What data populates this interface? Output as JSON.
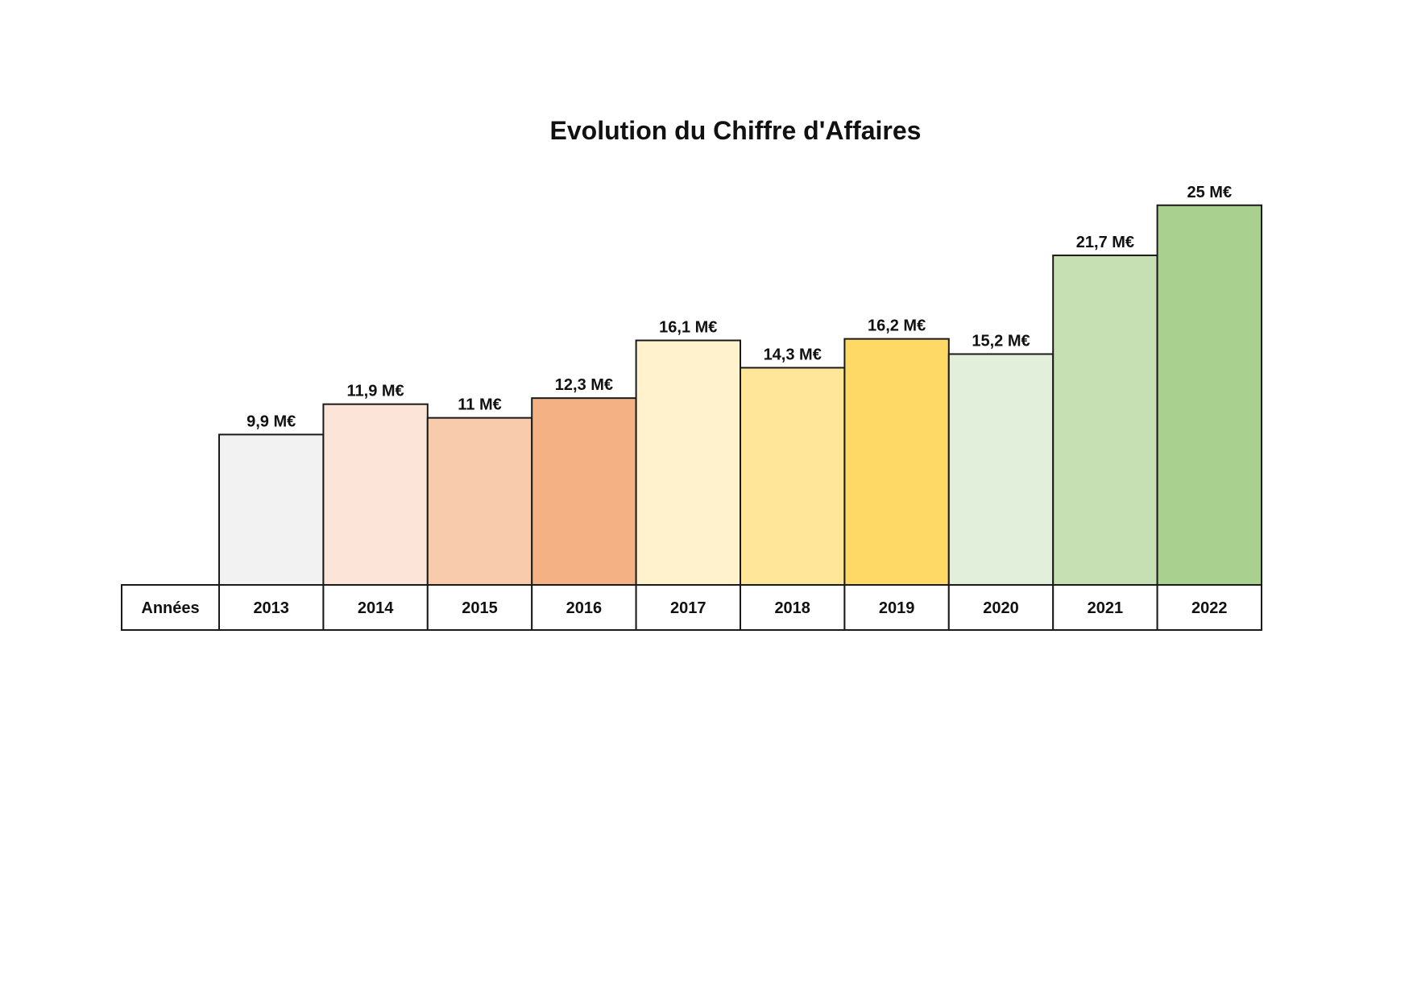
{
  "chart_data": {
    "type": "bar",
    "title": "Evolution du Chiffre d'Affaires",
    "table_header": "Années",
    "categories": [
      "2013",
      "2014",
      "2015",
      "2016",
      "2017",
      "2018",
      "2019",
      "2020",
      "2021",
      "2022"
    ],
    "values": [
      9.9,
      11.9,
      11,
      12.3,
      16.1,
      14.3,
      16.2,
      15.2,
      21.7,
      25
    ],
    "value_labels": [
      "9,9 M€",
      "11,9 M€",
      "11 M€",
      "12,3 M€",
      "16,1 M€",
      "14,3 M€",
      "16,2 M€",
      "15,2 M€",
      "21,7 M€",
      "25 M€"
    ],
    "colors": [
      "#f2f2f2",
      "#fde4d8",
      "#f8cbad",
      "#f4b183",
      "#fff2cc",
      "#ffe699",
      "#ffd966",
      "#e2efda",
      "#c6e0b4",
      "#a9d08e"
    ],
    "grid": false,
    "legend": "none"
  }
}
